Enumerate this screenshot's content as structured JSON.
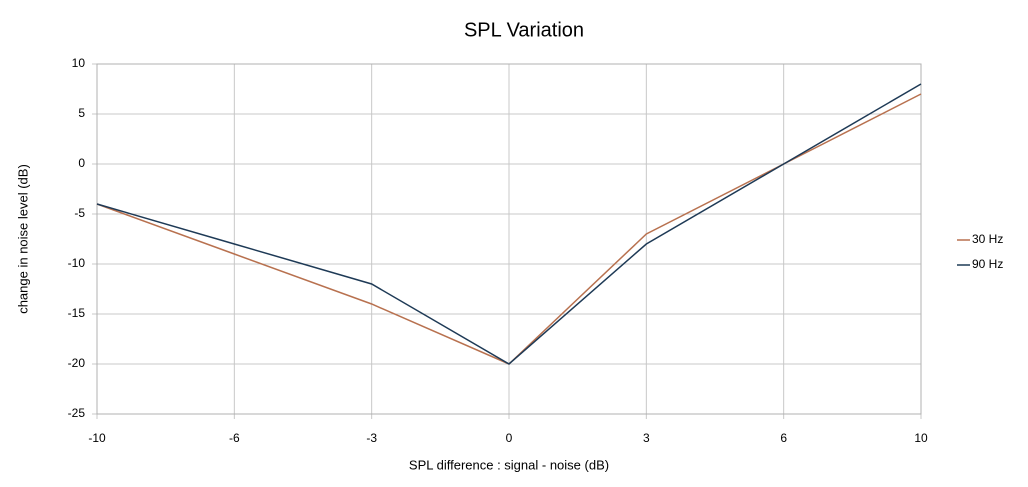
{
  "chart_data": {
    "type": "line",
    "title": "SPL Variation",
    "x_label": "SPL difference : signal - noise (dB)",
    "y_label": "change in noise level (dB)",
    "categories": [
      "-10",
      "-6",
      "-3",
      "0",
      "3",
      "6",
      "10"
    ],
    "series": [
      {
        "name": "30 Hz",
        "color": "#b8714f",
        "values": [
          -4,
          -9,
          -14,
          -20,
          -7,
          0,
          7
        ]
      },
      {
        "name": "90 Hz",
        "color": "#1e3a56",
        "values": [
          -4,
          -8,
          -12,
          -20,
          -8,
          0,
          8
        ]
      }
    ],
    "ylim": [
      -25,
      10
    ],
    "yticks": [
      -25,
      -20,
      -15,
      -10,
      -5,
      0,
      5,
      10
    ],
    "grid": true,
    "legend": "right"
  }
}
